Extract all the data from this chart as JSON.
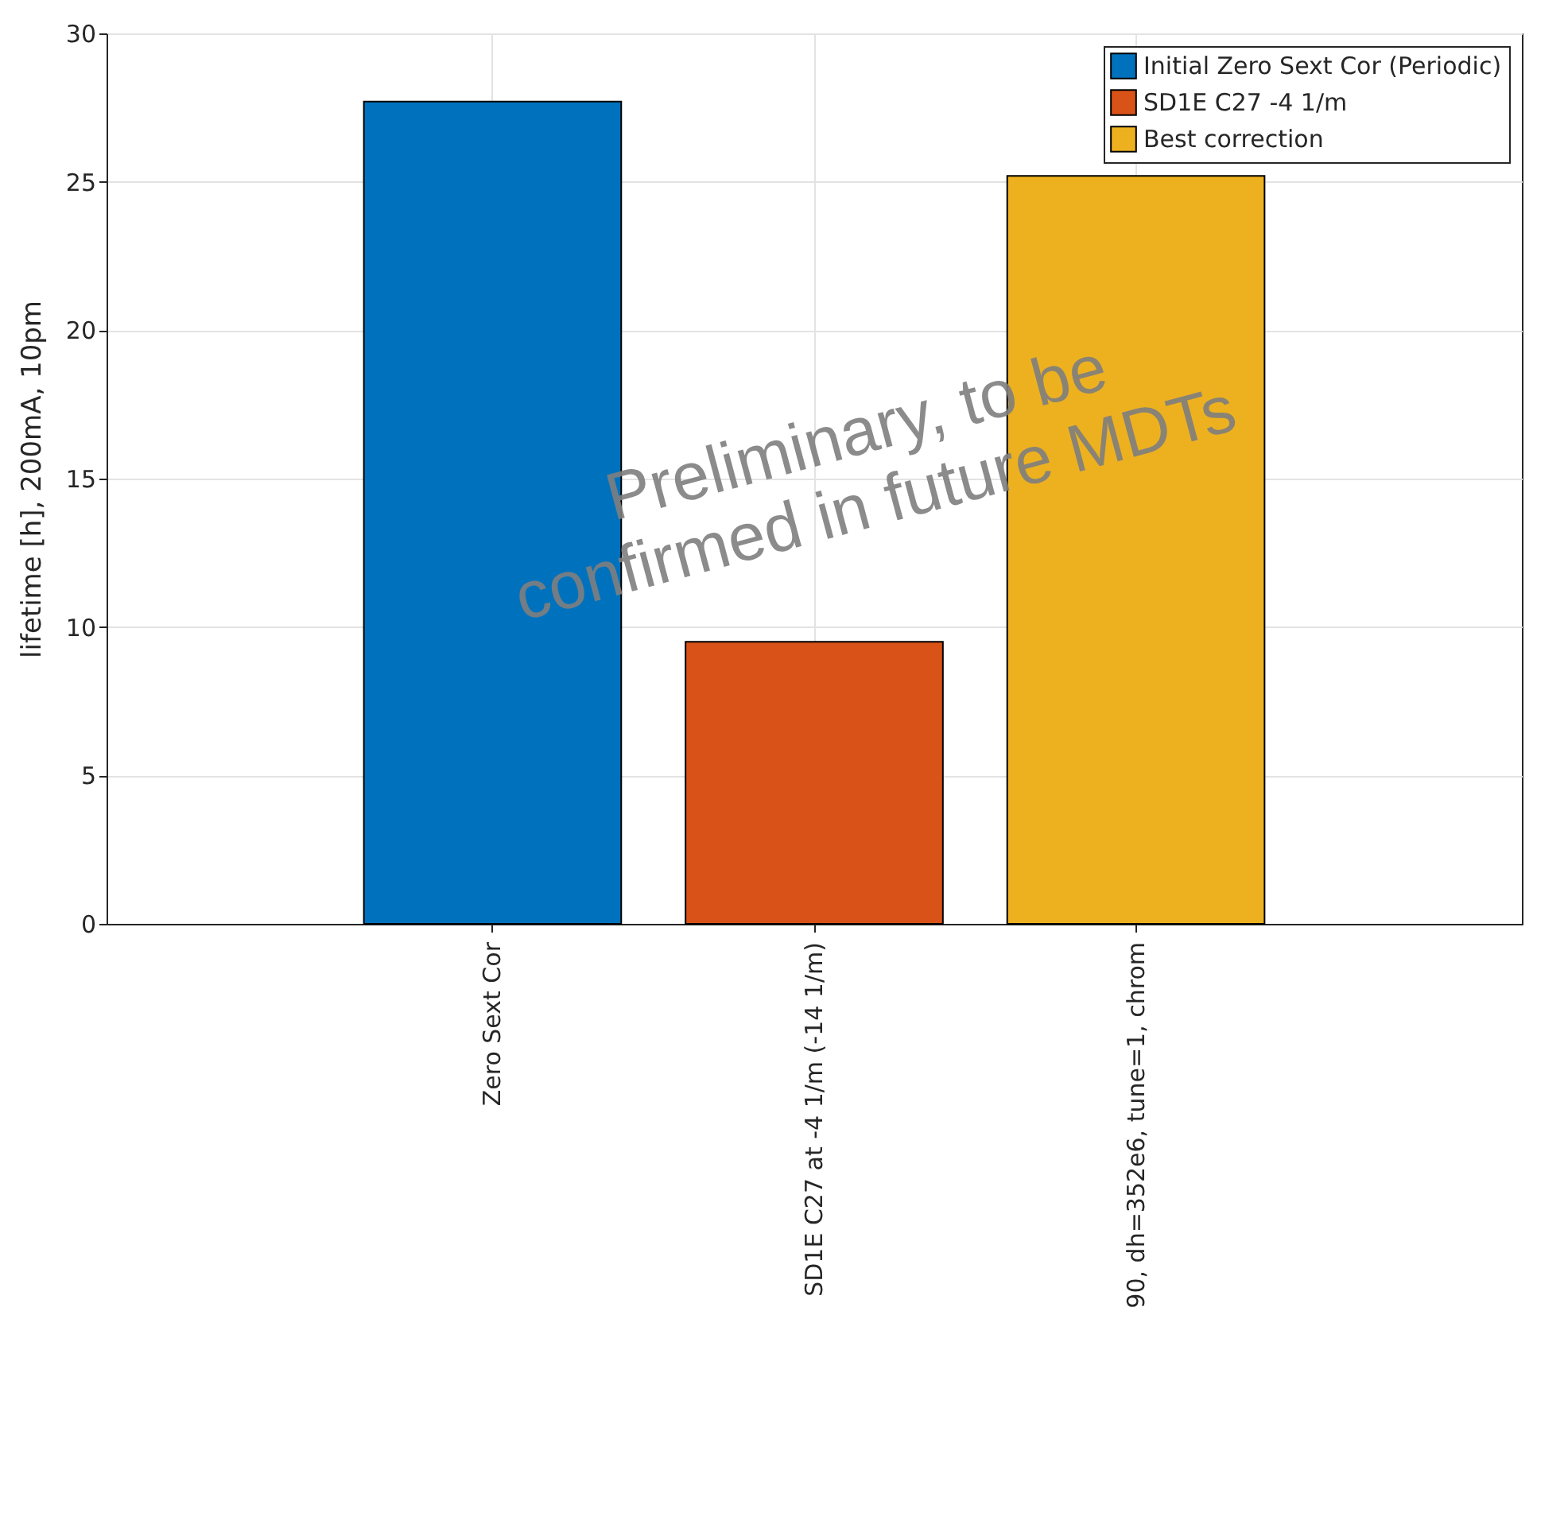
{
  "chart_data": {
    "type": "bar",
    "ylabel": "lifetime [h], 200mA, 10pm",
    "categories": [
      "Zero Sext Cor",
      "SD1E C27 at -4 1/m (-14 1/m)",
      "90, dh=352e6, tune=1, chrom"
    ],
    "series": [
      {
        "name": "Initial Zero Sext Cor (Periodic)",
        "color": "#0072bd",
        "values": [
          27.7,
          null,
          null
        ]
      },
      {
        "name": "SD1E C27 -4 1/m",
        "color": "#d95319",
        "values": [
          null,
          9.5,
          null
        ]
      },
      {
        "name": "Best correction",
        "color": "#edb120",
        "values": [
          null,
          null,
          25.2
        ]
      }
    ],
    "ylim": [
      0,
      30
    ],
    "yticks": [
      0,
      5,
      10,
      15,
      20,
      25,
      30
    ],
    "grid": true,
    "legend": "top right",
    "annotations": [
      "Preliminary, to be confirmed in future MDTs"
    ]
  }
}
